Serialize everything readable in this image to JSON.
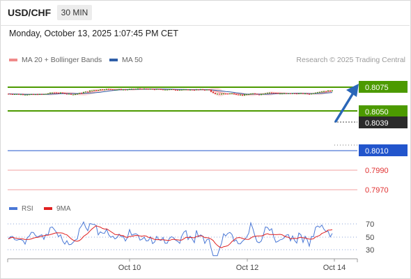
{
  "header": {
    "symbol": "USD/CHF",
    "timeframe": "30 MIN"
  },
  "datetime": "Monday, October 13, 2025 1:07:45 PM CET",
  "legend": [
    {
      "label": "MA 20 + Bollinger Bands",
      "color": "#f08a8a"
    },
    {
      "label": "MA 50",
      "color": "#2f5fa8"
    }
  ],
  "copyright": "Research © 2025 Trading Central",
  "levels": [
    {
      "value": "0.8075",
      "kind": "resistance"
    },
    {
      "value": "0.8050",
      "kind": "resistance"
    },
    {
      "value": "0.8039",
      "kind": "last"
    },
    {
      "value": "0.8010",
      "kind": "pivot"
    },
    {
      "value": "0.7990",
      "kind": "support"
    },
    {
      "value": "0.7970",
      "kind": "support"
    }
  ],
  "rsi_legend": [
    {
      "label": "RSI",
      "color": "#4a78d6"
    },
    {
      "label": "9MA",
      "color": "#e02020"
    }
  ],
  "rsi_scale": [
    "70",
    "50",
    "30"
  ],
  "x_labels": [
    "Oct 10",
    "Oct 12",
    "Oct 14"
  ],
  "colors": {
    "green": "#4c9a00",
    "blue": "#2255cc",
    "red": "#e03030",
    "up": "#3b8f12",
    "down": "#d42a2a"
  }
}
